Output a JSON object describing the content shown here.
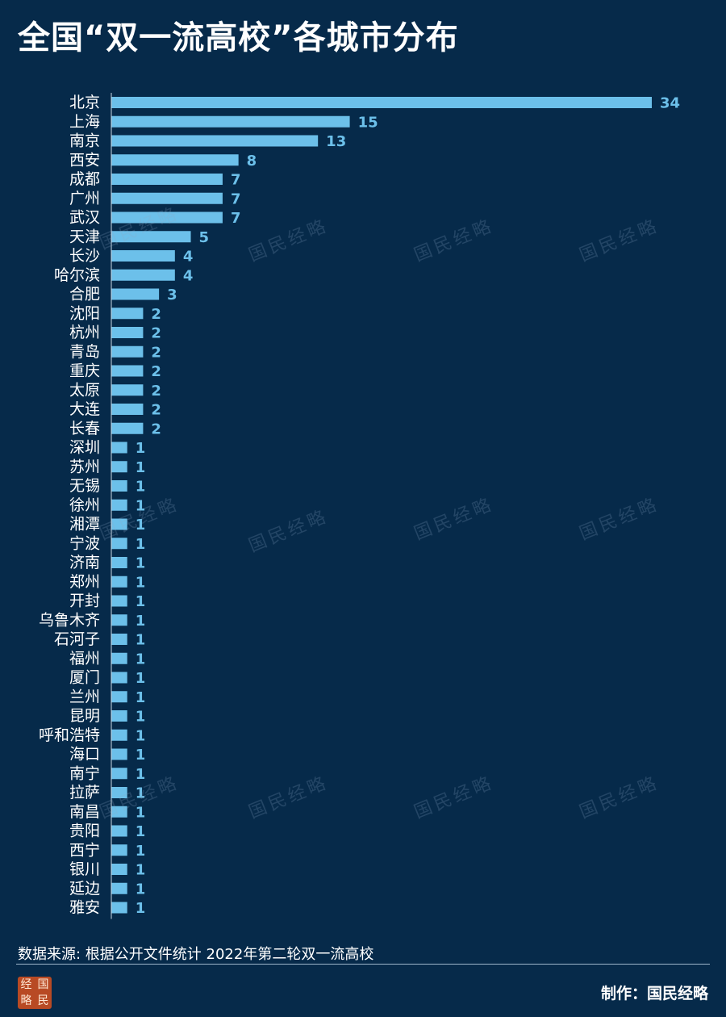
{
  "title": "全国“双一流高校”各城市分布",
  "source_note": "数据来源: 根据公开文件统计 2022年第二轮双一流高校",
  "credit": "制作：国民经略",
  "logo_chars": [
    "经",
    "国",
    "略",
    "民"
  ],
  "watermark_text": "国民经略",
  "colors": {
    "background": "#062a4a",
    "bar": "#6cc0ea",
    "value_label": "#6cc0ea",
    "axis": "#c8d6e2"
  },
  "chart_data": {
    "type": "bar",
    "orientation": "horizontal",
    "title": "全国“双一流高校”各城市分布",
    "xlabel": "",
    "ylabel": "",
    "grid": false,
    "legend": "none",
    "xlim": [
      0,
      34
    ],
    "categories": [
      "北京",
      "上海",
      "南京",
      "西安",
      "成都",
      "广州",
      "武汉",
      "天津",
      "长沙",
      "哈尔滨",
      "合肥",
      "沈阳",
      "杭州",
      "青岛",
      "重庆",
      "太原",
      "大连",
      "长春",
      "深圳",
      "苏州",
      "无锡",
      "徐州",
      "湘潭",
      "宁波",
      "济南",
      "郑州",
      "开封",
      "乌鲁木齐",
      "石河子",
      "福州",
      "厦门",
      "兰州",
      "昆明",
      "呼和浩特",
      "海口",
      "南宁",
      "拉萨",
      "南昌",
      "贵阳",
      "西宁",
      "银川",
      "延边",
      "雅安"
    ],
    "values": [
      34,
      15,
      13,
      8,
      7,
      7,
      7,
      5,
      4,
      4,
      3,
      2,
      2,
      2,
      2,
      2,
      2,
      2,
      1,
      1,
      1,
      1,
      1,
      1,
      1,
      1,
      1,
      1,
      1,
      1,
      1,
      1,
      1,
      1,
      1,
      1,
      1,
      1,
      1,
      1,
      1,
      1,
      1
    ]
  }
}
